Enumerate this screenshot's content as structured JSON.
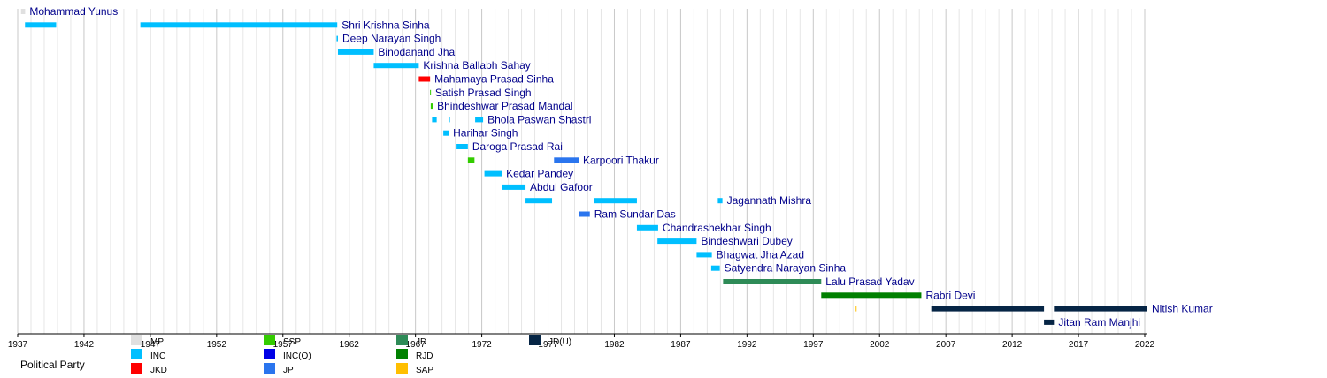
{
  "chart_data": {
    "type": "timeline",
    "title": "",
    "x_axis": {
      "min": 1937,
      "max": 2022.2,
      "ticks": [
        1937,
        1942,
        1947,
        1952,
        1957,
        1962,
        1967,
        1972,
        1977,
        1982,
        1987,
        1992,
        1997,
        2002,
        2007,
        2012,
        2017,
        2022
      ],
      "minor_step": 1,
      "grid": true
    },
    "legend": {
      "title": "Political Party",
      "placement": "bottom-left",
      "items": [
        {
          "key": "MP",
          "label": "MP",
          "color": "#e0e0e0"
        },
        {
          "key": "INC",
          "label": "INC",
          "color": "#00bfff"
        },
        {
          "key": "JKD",
          "label": "JKD",
          "color": "#ff0000"
        },
        {
          "key": "SSP",
          "label": "SSP",
          "color": "#33cc00"
        },
        {
          "key": "INCO",
          "label": "INC(O)",
          "color": "#0000e6"
        },
        {
          "key": "JP",
          "label": "JP",
          "color": "#2a75ee"
        },
        {
          "key": "JD",
          "label": "JD",
          "color": "#2e8b57"
        },
        {
          "key": "RJD",
          "label": "RJD",
          "color": "#008000"
        },
        {
          "key": "SAP",
          "label": "SAP",
          "color": "#ffbf00"
        },
        {
          "key": "JDU",
          "label": "JD(U)",
          "color": "#062545"
        }
      ]
    },
    "series": [
      {
        "name": "Mohammad Yunus",
        "terms": [
          {
            "start": 1937.25,
            "end": 1937.56,
            "party": "MP"
          }
        ]
      },
      {
        "name": "Shri Krishna Sinha",
        "terms": [
          {
            "start": 1937.55,
            "end": 1939.9,
            "party": "INC"
          },
          {
            "start": 1946.25,
            "end": 1961.1,
            "party": "INC"
          }
        ]
      },
      {
        "name": "Deep Narayan Singh",
        "terms": [
          {
            "start": 1961.05,
            "end": 1961.15,
            "party": "INC"
          }
        ]
      },
      {
        "name": "Binodanand Jha",
        "terms": [
          {
            "start": 1961.15,
            "end": 1963.85,
            "party": "INC"
          }
        ]
      },
      {
        "name": "Krishna Ballabh Sahay",
        "terms": [
          {
            "start": 1963.85,
            "end": 1967.25,
            "party": "INC"
          }
        ]
      },
      {
        "name": "Mahamaya Prasad Sinha",
        "terms": [
          {
            "start": 1967.25,
            "end": 1968.1,
            "party": "JKD"
          }
        ]
      },
      {
        "name": "Satish Prasad Singh",
        "terms": [
          {
            "start": 1968.1,
            "end": 1968.15,
            "party": "SSP"
          }
        ]
      },
      {
        "name": "Bhindeshwar Prasad Mandal",
        "terms": [
          {
            "start": 1968.15,
            "end": 1968.3,
            "party": "SSP"
          }
        ]
      },
      {
        "name": "Bhola Paswan Shastri",
        "terms": [
          {
            "start": 1968.25,
            "end": 1968.6,
            "party": "INC"
          },
          {
            "start": 1969.5,
            "end": 1969.6,
            "party": "INC"
          },
          {
            "start": 1971.5,
            "end": 1972.1,
            "party": "INC"
          }
        ]
      },
      {
        "name": "Harihar Singh",
        "terms": [
          {
            "start": 1969.1,
            "end": 1969.5,
            "party": "INC"
          }
        ]
      },
      {
        "name": "Daroga Prasad Rai",
        "terms": [
          {
            "start": 1970.1,
            "end": 1970.95,
            "party": "INC"
          }
        ]
      },
      {
        "name": "Karpoori Thakur",
        "terms": [
          {
            "start": 1970.95,
            "end": 1971.45,
            "party": "SSP"
          },
          {
            "start": 1977.45,
            "end": 1979.3,
            "party": "JP"
          }
        ]
      },
      {
        "name": "Kedar Pandey",
        "terms": [
          {
            "start": 1972.2,
            "end": 1973.5,
            "party": "INC"
          }
        ]
      },
      {
        "name": "Abdul Gafoor",
        "terms": [
          {
            "start": 1973.5,
            "end": 1975.3,
            "party": "INC"
          }
        ]
      },
      {
        "name": "Jagannath Mishra",
        "terms": [
          {
            "start": 1975.3,
            "end": 1977.3,
            "party": "INC"
          },
          {
            "start": 1980.45,
            "end": 1983.7,
            "party": "INC"
          },
          {
            "start": 1989.8,
            "end": 1990.15,
            "party": "INC"
          }
        ]
      },
      {
        "name": "Ram Sundar Das",
        "terms": [
          {
            "start": 1979.3,
            "end": 1980.15,
            "party": "JP"
          }
        ]
      },
      {
        "name": "Chandrashekhar Singh",
        "terms": [
          {
            "start": 1983.7,
            "end": 1985.3,
            "party": "INC"
          }
        ]
      },
      {
        "name": "Bindeshwari Dubey",
        "terms": [
          {
            "start": 1985.25,
            "end": 1988.2,
            "party": "INC"
          }
        ]
      },
      {
        "name": "Bhagwat Jha Azad",
        "terms": [
          {
            "start": 1988.2,
            "end": 1989.35,
            "party": "INC"
          }
        ]
      },
      {
        "name": "Satyendra Narayan Sinha",
        "terms": [
          {
            "start": 1989.3,
            "end": 1989.95,
            "party": "INC"
          }
        ]
      },
      {
        "name": "Lalu Prasad Yadav",
        "terms": [
          {
            "start": 1990.2,
            "end": 1997.6,
            "party": "JD"
          }
        ]
      },
      {
        "name": "Rabri Devi",
        "terms": [
          {
            "start": 1997.6,
            "end": 2005.15,
            "party": "RJD"
          }
        ]
      },
      {
        "name": "Nitish Kumar",
        "terms": [
          {
            "start": 2000.2,
            "end": 2000.25,
            "party": "SAP"
          },
          {
            "start": 2005.9,
            "end": 2014.4,
            "party": "JDU"
          },
          {
            "start": 2015.15,
            "end": 2022.2,
            "party": "JDU"
          }
        ]
      },
      {
        "name": "Jitan Ram Manjhi",
        "terms": [
          {
            "start": 2014.4,
            "end": 2015.15,
            "party": "JDU"
          }
        ]
      }
    ]
  }
}
